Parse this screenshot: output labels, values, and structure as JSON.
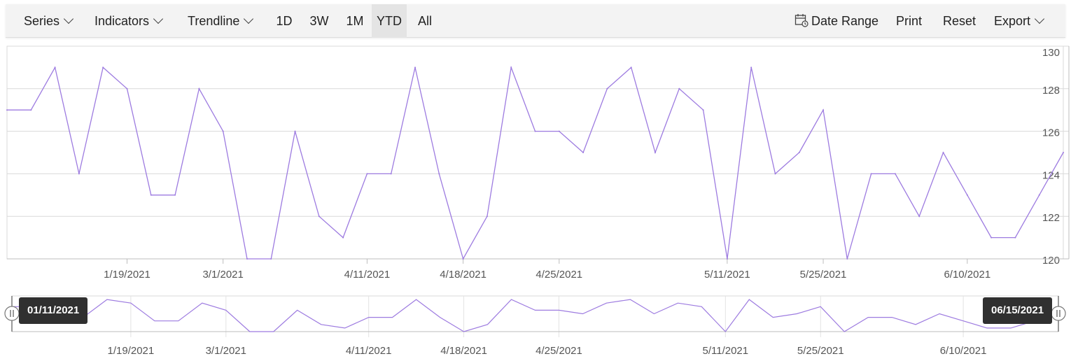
{
  "toolbar": {
    "series_label": "Series",
    "indicators_label": "Indicators",
    "trendline_label": "Trendline",
    "periods": [
      "1D",
      "3W",
      "1M",
      "YTD",
      "All"
    ],
    "active_period": "YTD",
    "date_range_label": "Date Range",
    "print_label": "Print",
    "reset_label": "Reset",
    "export_label": "Export"
  },
  "navigator": {
    "start_label": "01/11/2021",
    "end_label": "06/15/2021"
  },
  "colors": {
    "series": "#9d7be0",
    "grid": "#d9d9d9",
    "axis": "#bdbdbd",
    "tooltip": "#303030"
  },
  "chart_data": {
    "type": "line",
    "title": "",
    "xlabel": "",
    "ylabel": "",
    "ylim": [
      120,
      130
    ],
    "y_ticks": [
      120,
      122,
      124,
      126,
      128,
      130
    ],
    "x_tick_labels": [
      "1/19/2021",
      "3/1/2021",
      "4/11/2021",
      "4/18/2021",
      "4/25/2021",
      "5/11/2021",
      "5/25/2021",
      "6/10/2021"
    ],
    "x_tick_indices": [
      5,
      9,
      15,
      19,
      23,
      30,
      34,
      40
    ],
    "grid": true,
    "series": [
      {
        "values": [
          127,
          127,
          129,
          124,
          129,
          128,
          123,
          123,
          128,
          126,
          120,
          120,
          126,
          122,
          121,
          124,
          124,
          129,
          124,
          120,
          122,
          129,
          126,
          126,
          125,
          128,
          129,
          125,
          128,
          127,
          120,
          129,
          124,
          125,
          127,
          120,
          124,
          124,
          122,
          125,
          123,
          121,
          121,
          123,
          125
        ]
      }
    ]
  }
}
